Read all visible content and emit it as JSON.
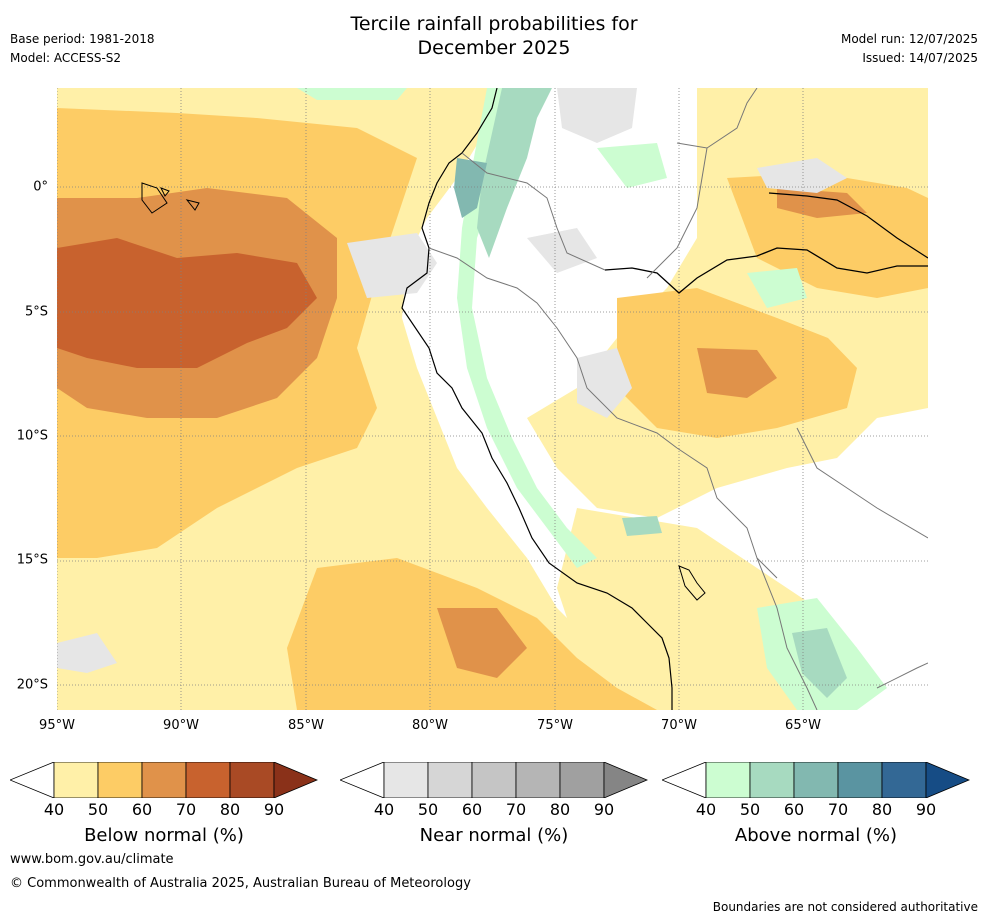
{
  "header": {
    "title_line1": "Tercile rainfall probabilities for",
    "title_line2": "December 2025",
    "base_period": "Base period: 1981-2018",
    "model": "Model: ACCESS-S2",
    "model_run": "Model run: 12/07/2025",
    "issued": "Issued: 14/07/2025"
  },
  "map": {
    "lon_labels": [
      "95°W",
      "90°W",
      "85°W",
      "80°W",
      "75°W",
      "70°W",
      "65°W"
    ],
    "lat_labels": [
      "0°",
      "5°S",
      "10°S",
      "15°S",
      "20°S"
    ],
    "lon_range": [
      -95,
      -60
    ],
    "lat_range": [
      -21,
      4
    ],
    "gridlines": true
  },
  "colorbars": [
    {
      "name": "below",
      "label": "Below normal (%)",
      "ticks": [
        "40",
        "50",
        "60",
        "70",
        "80",
        "90"
      ],
      "colors": [
        "#fff0a8",
        "#fdcc65",
        "#e0924a",
        "#c8622e",
        "#a94a25",
        "#8a3119"
      ]
    },
    {
      "name": "near",
      "label": "Near normal (%)",
      "ticks": [
        "40",
        "50",
        "60",
        "70",
        "80",
        "90"
      ],
      "colors": [
        "#e6e6e6",
        "#d6d6d6",
        "#c5c5c5",
        "#b5b5b5",
        "#a0a0a0",
        "#858585"
      ]
    },
    {
      "name": "above",
      "label": "Above normal (%)",
      "ticks": [
        "40",
        "50",
        "60",
        "70",
        "80",
        "90"
      ],
      "colors": [
        "#ccfdd1",
        "#a7dac0",
        "#82b8b0",
        "#5a94a1",
        "#336895",
        "#164c85"
      ]
    }
  ],
  "footer": {
    "website": "www.bom.gov.au/climate",
    "copyright": "© Commonwealth of Australia 2025, Australian Bureau of Meteorology",
    "disclaimer": "Boundaries are not considered authoritative"
  }
}
